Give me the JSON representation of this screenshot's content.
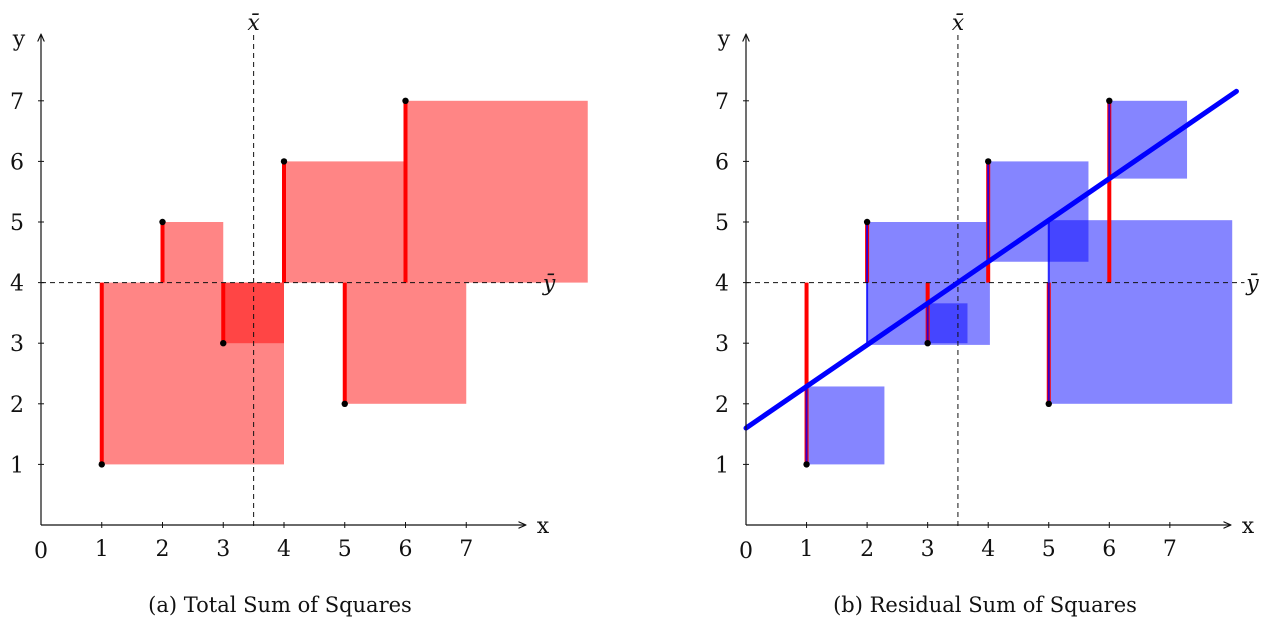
{
  "chart_data": [
    {
      "type": "scatter",
      "caption": "(a) Total Sum of Squares",
      "xlabel": "x",
      "ylabel": "y",
      "origin_label": "0",
      "x_ticks": [
        1,
        2,
        3,
        4,
        5,
        6,
        7
      ],
      "y_ticks": [
        1,
        2,
        3,
        4,
        5,
        6,
        7
      ],
      "xlim": [
        0,
        8.1
      ],
      "ylim": [
        0,
        8
      ],
      "points": [
        {
          "x": 1,
          "y": 1
        },
        {
          "x": 2,
          "y": 5
        },
        {
          "x": 3,
          "y": 3
        },
        {
          "x": 4,
          "y": 6
        },
        {
          "x": 5,
          "y": 2
        },
        {
          "x": 6,
          "y": 7
        }
      ],
      "x_mean": 3.5,
      "y_mean": 4,
      "x_mean_label": "x̄",
      "y_mean_label": "ȳ",
      "squares": "deviation from ȳ",
      "square_color": "#ff0000",
      "segment_color": "#ff0000"
    },
    {
      "type": "scatter",
      "caption": "(b) Residual Sum of Squares",
      "xlabel": "x",
      "ylabel": "y",
      "origin_label": "0",
      "x_ticks": [
        1,
        2,
        3,
        4,
        5,
        6,
        7
      ],
      "y_ticks": [
        1,
        2,
        3,
        4,
        5,
        6,
        7
      ],
      "xlim": [
        0,
        8.1
      ],
      "ylim": [
        0,
        8
      ],
      "points": [
        {
          "x": 1,
          "y": 1
        },
        {
          "x": 2,
          "y": 5
        },
        {
          "x": 3,
          "y": 3
        },
        {
          "x": 4,
          "y": 6
        },
        {
          "x": 5,
          "y": 2
        },
        {
          "x": 6,
          "y": 7
        }
      ],
      "x_mean": 3.5,
      "y_mean": 4,
      "x_mean_label": "x̄",
      "y_mean_label": "ȳ",
      "regression_line": {
        "intercept": 1.6,
        "slope": 0.686
      },
      "squares": "residual",
      "square_color": "#0000ff",
      "segment_color": "#ff0000",
      "line_color": "#0000ff"
    }
  ]
}
